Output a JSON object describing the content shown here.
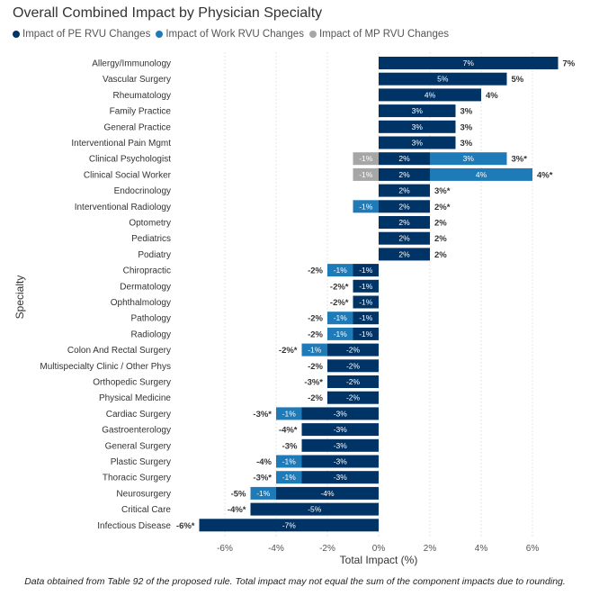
{
  "colors": {
    "pe": "#003366",
    "work": "#1f7ab8",
    "mp": "#a6a6a6",
    "grid": "#dcdcdc"
  },
  "chart_data": {
    "type": "bar",
    "orientation": "horizontal",
    "stacked": true,
    "title": "Overall Combined Impact by Physician Specialty",
    "xlabel": "Total Impact (%)",
    "ylabel": "Specialty",
    "xlim": [
      -7.4,
      7.4
    ],
    "xticks": [
      -6,
      -4,
      -2,
      0,
      2,
      4,
      6
    ],
    "xtick_labels": [
      "-6%",
      "-4%",
      "-2%",
      "0%",
      "2%",
      "4%",
      "6%"
    ],
    "grid": "vertical dotted",
    "legend_position": "top-left",
    "categories": [
      "Allergy/Immunology",
      "Vascular Surgery",
      "Rheumatology",
      "Family Practice",
      "General Practice",
      "Interventional Pain Mgmt",
      "Clinical Psychologist",
      "Clinical Social Worker",
      "Endocrinology",
      "Interventional Radiology",
      "Optometry",
      "Pediatrics",
      "Podiatry",
      "Chiropractic",
      "Dermatology",
      "Ophthalmology",
      "Pathology",
      "Radiology",
      "Colon And Rectal Surgery",
      "Multispecialty Clinic / Other Phys",
      "Orthopedic Surgery",
      "Physical Medicine",
      "Cardiac Surgery",
      "Gastroenterology",
      "General Surgery",
      "Plastic Surgery",
      "Thoracic Surgery",
      "Neurosurgery",
      "Critical Care",
      "Infectious Disease"
    ],
    "series": [
      {
        "name": "Impact of PE RVU Changes",
        "color": "#003366",
        "values": [
          7,
          5,
          4,
          3,
          3,
          3,
          2,
          2,
          2,
          2,
          2,
          2,
          2,
          -1,
          -1,
          -1,
          -1,
          -1,
          -2,
          -2,
          -2,
          -2,
          -3,
          -3,
          -3,
          -3,
          -3,
          -4,
          -5,
          -7
        ],
        "labels": [
          "7%",
          "5%",
          "4%",
          "3%",
          "3%",
          "3%",
          "2%",
          "2%",
          "2%",
          "2%",
          "2%",
          "2%",
          "2%",
          "-1%",
          "-1%",
          "-1%",
          "-1%",
          "-1%",
          "-2%",
          "-2%",
          "-2%",
          "-2%",
          "-3%",
          "-3%",
          "-3%",
          "-3%",
          "-3%",
          "-4%",
          "-5%",
          "-7%"
        ]
      },
      {
        "name": "Impact of Work RVU Changes",
        "color": "#1f7ab8",
        "values": [
          0,
          0,
          0,
          0,
          0,
          0,
          3,
          4,
          0,
          -1,
          0,
          0,
          0,
          -1,
          0,
          0,
          -1,
          -1,
          -1,
          0,
          0,
          0,
          -1,
          0,
          0,
          -1,
          -1,
          -1,
          0,
          0
        ],
        "labels": [
          "",
          "",
          "",
          "",
          "",
          "",
          "3%",
          "4%",
          "",
          "-1%",
          "",
          "",
          "",
          "-1%",
          "",
          "",
          "-1%",
          "-1%",
          "-1%",
          "",
          "",
          "",
          "-1%",
          "",
          "",
          "-1%",
          "-1%",
          "-1%",
          "",
          ""
        ]
      },
      {
        "name": "Impact of MP RVU Changes",
        "color": "#a6a6a6",
        "values": [
          0,
          0,
          0,
          0,
          0,
          0,
          -1,
          -1,
          0,
          0,
          0,
          0,
          0,
          0,
          0,
          0,
          0,
          0,
          0,
          0,
          0,
          0,
          0,
          0,
          0,
          0,
          0,
          0,
          0,
          0
        ],
        "labels": [
          "",
          "",
          "",
          "",
          "",
          "",
          "-1%",
          "-1%",
          "",
          "",
          "",
          "",
          "",
          "",
          "",
          "",
          "",
          "",
          "",
          "",
          "",
          "",
          "",
          "",
          "",
          "",
          "",
          "",
          "",
          ""
        ]
      }
    ],
    "totals": [
      "7%",
      "5%",
      "4%",
      "3%",
      "3%",
      "3%",
      "3%*",
      "4%*",
      "3%*",
      "2%*",
      "2%",
      "2%",
      "2%",
      "-2%",
      "-2%*",
      "-2%*",
      "-2%",
      "-2%",
      "-2%*",
      "-2%",
      "-3%*",
      "-2%",
      "-3%*",
      "-4%*",
      "-3%",
      "-4%",
      "-3%*",
      "-5%",
      "-4%*",
      "-6%*"
    ],
    "total_values": [
      7,
      5,
      4,
      3,
      3,
      3,
      3,
      4,
      3,
      2,
      2,
      2,
      2,
      -2,
      -2,
      -2,
      -2,
      -2,
      -2,
      -2,
      -3,
      -2,
      -3,
      -4,
      -3,
      -4,
      -3,
      -5,
      -4,
      -6
    ]
  },
  "caption": "Data obtained from Table 92 of the proposed rule. Total impact may not equal the sum of the component impacts due to rounding."
}
